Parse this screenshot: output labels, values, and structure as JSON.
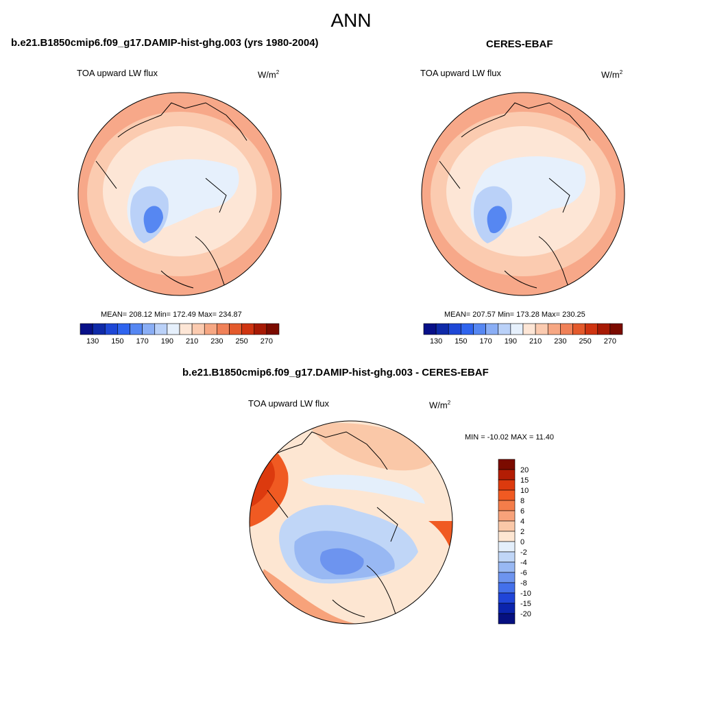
{
  "title": "ANN",
  "panels": {
    "model": {
      "title": "b.e21.B1850cmip6.f09_g17.DAMIP-hist-ghg.003 (yrs 1980-2004)",
      "left_label": "TOA upward LW flux",
      "units_base": "W/m",
      "units_exp": "2",
      "stats": "MEAN= 208.12  Min= 172.49  Max= 234.87"
    },
    "obs": {
      "title": "CERES-EBAF",
      "left_label": "TOA upward LW flux",
      "units_base": "W/m",
      "units_exp": "2",
      "stats": "MEAN= 207.57  Min= 173.28  Max= 230.25"
    },
    "diff": {
      "title": "b.e21.B1850cmip6.f09_g17.DAMIP-hist-ghg.003 - CERES-EBAF",
      "left_label": "TOA upward LW flux",
      "units_base": "W/m",
      "units_exp": "2",
      "stats": "MIN = -10.02 MAX =  11.40"
    }
  },
  "chart_data": [
    {
      "type": "heatmap",
      "projection": "north-polar-stereographic",
      "title": "b.e21.B1850cmip6.f09_g17.DAMIP-hist-ghg.003 (yrs 1980-2004)",
      "variable": "TOA upward LW flux",
      "units": "W/m2",
      "mean": 208.12,
      "min": 172.49,
      "max": 234.87,
      "colorbar": {
        "orientation": "horizontal",
        "levels": [
          130,
          140,
          150,
          160,
          170,
          180,
          190,
          200,
          210,
          220,
          230,
          240,
          250,
          260,
          270
        ],
        "tick_labels": [
          "130",
          "150",
          "170",
          "190",
          "210",
          "230",
          "250",
          "270"
        ],
        "colors": [
          "#081088",
          "#0f2aa8",
          "#1e47d6",
          "#2f64ee",
          "#5687f2",
          "#8aaef5",
          "#bad1f8",
          "#e6f0fc",
          "#fde6d6",
          "#fbcbb0",
          "#f6a783",
          "#f08158",
          "#e45a2c",
          "#cf3411",
          "#a71a05",
          "#7b0b00"
        ]
      }
    },
    {
      "type": "heatmap",
      "projection": "north-polar-stereographic",
      "title": "CERES-EBAF",
      "variable": "TOA upward LW flux",
      "units": "W/m2",
      "mean": 207.57,
      "min": 173.28,
      "max": 230.25,
      "colorbar": {
        "orientation": "horizontal",
        "levels": [
          130,
          140,
          150,
          160,
          170,
          180,
          190,
          200,
          210,
          220,
          230,
          240,
          250,
          260,
          270
        ],
        "tick_labels": [
          "130",
          "150",
          "170",
          "190",
          "210",
          "230",
          "250",
          "270"
        ],
        "colors": [
          "#081088",
          "#0f2aa8",
          "#1e47d6",
          "#2f64ee",
          "#5687f2",
          "#8aaef5",
          "#bad1f8",
          "#e6f0fc",
          "#fde6d6",
          "#fbcbb0",
          "#f6a783",
          "#f08158",
          "#e45a2c",
          "#cf3411",
          "#a71a05",
          "#7b0b00"
        ]
      }
    },
    {
      "type": "heatmap",
      "projection": "north-polar-stereographic",
      "title": "b.e21.B1850cmip6.f09_g17.DAMIP-hist-ghg.003 - CERES-EBAF",
      "variable": "TOA upward LW flux",
      "units": "W/m2",
      "min": -10.02,
      "max": 11.4,
      "colorbar": {
        "orientation": "vertical",
        "tick_labels": [
          "20",
          "15",
          "10",
          "8",
          "6",
          "4",
          "2",
          "0",
          "-2",
          "-4",
          "-6",
          "-8",
          "-10",
          "-15",
          "-20"
        ],
        "colors": [
          "#7b0b00",
          "#b31d04",
          "#dc3a0e",
          "#f05a22",
          "#f47d4a",
          "#f7a27a",
          "#fac8a8",
          "#fde6d2",
          "#e4effb",
          "#c0d6f7",
          "#98b8f3",
          "#6d94ef",
          "#4470ea",
          "#2045d8",
          "#0b24ad",
          "#061080"
        ]
      }
    }
  ]
}
